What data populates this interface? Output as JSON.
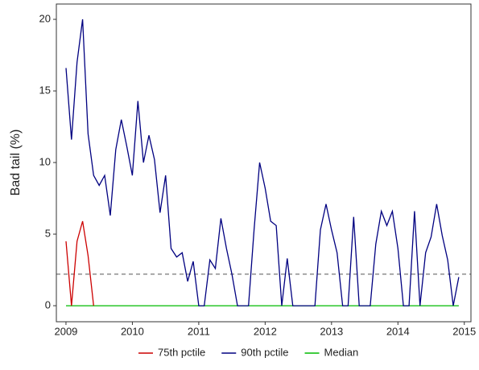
{
  "chart_data": {
    "type": "line",
    "y_label": "Bad tail (%)",
    "x": [
      2009,
      2009.083,
      2009.167,
      2009.25,
      2009.333,
      2009.417,
      2009.5,
      2009.583,
      2009.667,
      2009.75,
      2009.833,
      2009.917,
      2010,
      2010.083,
      2010.167,
      2010.25,
      2010.333,
      2010.417,
      2010.5,
      2010.583,
      2010.667,
      2010.75,
      2010.833,
      2010.917,
      2011,
      2011.083,
      2011.167,
      2011.25,
      2011.333,
      2011.417,
      2011.5,
      2011.583,
      2011.667,
      2011.75,
      2011.833,
      2011.917,
      2012,
      2012.083,
      2012.167,
      2012.25,
      2012.333,
      2012.417,
      2012.5,
      2012.583,
      2012.667,
      2012.75,
      2012.833,
      2012.917,
      2013,
      2013.083,
      2013.167,
      2013.25,
      2013.333,
      2013.417,
      2013.5,
      2013.583,
      2013.667,
      2013.75,
      2013.833,
      2013.917,
      2014,
      2014.083,
      2014.167,
      2014.25,
      2014.333,
      2014.417,
      2014.5,
      2014.583,
      2014.667,
      2014.75,
      2014.833,
      2014.917
    ],
    "series": [
      {
        "name": "75th pctile",
        "color": "#cc0000",
        "values": [
          4.5,
          0,
          4.5,
          5.9,
          3.5,
          0,
          null,
          null,
          null,
          null,
          null,
          null,
          null,
          null,
          null,
          null,
          null,
          null,
          null,
          null,
          null,
          null,
          null,
          null,
          null,
          null,
          null,
          null,
          null,
          null,
          null,
          null,
          null,
          null,
          null,
          null,
          null,
          null,
          null,
          null,
          null,
          null,
          null,
          null,
          null,
          null,
          null,
          null,
          null,
          null,
          null,
          null,
          null,
          null,
          null,
          null,
          null,
          null,
          null,
          null,
          null,
          null,
          null,
          null,
          null,
          null,
          null,
          null,
          null,
          null,
          null,
          null
        ]
      },
      {
        "name": "90th pctile",
        "color": "#000080",
        "values": [
          16.6,
          11.6,
          17,
          20,
          12,
          9.1,
          8.4,
          9.1,
          6.3,
          10.9,
          13,
          11.1,
          9.1,
          14.3,
          10,
          11.9,
          10.2,
          6.5,
          9.1,
          4,
          3.4,
          3.7,
          1.7,
          3.1,
          0,
          0,
          3.2,
          2.6,
          6.1,
          4,
          2.2,
          0,
          0,
          0,
          5.3,
          10,
          8.2,
          5.9,
          5.6,
          0,
          3.3,
          0,
          0,
          0,
          0,
          0,
          5.3,
          7.1,
          5.3,
          3.7,
          0,
          0,
          6.2,
          0,
          0,
          0,
          4.3,
          6.6,
          5.6,
          6.6,
          4,
          0,
          0,
          6.6,
          0,
          3.7,
          4.8,
          7.1,
          4.9,
          3.2,
          0,
          2
        ]
      },
      {
        "name": "Median",
        "color": "#00bb00",
        "values": [
          0,
          0,
          0,
          0,
          0,
          0,
          0,
          0,
          0,
          0,
          0,
          0,
          0,
          0,
          0,
          0,
          0,
          0,
          0,
          0,
          0,
          0,
          0,
          0,
          0,
          0,
          0,
          0,
          0,
          0,
          0,
          0,
          0,
          0,
          0,
          0,
          0,
          0,
          0,
          0,
          0,
          0,
          0,
          0,
          0,
          0,
          0,
          0,
          0,
          0,
          0,
          0,
          0,
          0,
          0,
          0,
          0,
          0,
          0,
          0,
          0,
          0,
          0,
          0,
          0,
          0,
          0,
          0,
          0,
          0,
          0,
          0
        ]
      }
    ],
    "hline": 2.2,
    "xlim": [
      2008.855,
      2015.1
    ],
    "xticks": [
      2009,
      2010,
      2011,
      2012,
      2013,
      2014,
      2015
    ],
    "ylim": [
      -1.12,
      21.07
    ],
    "yticks": [
      0,
      5,
      10,
      15,
      20
    ],
    "legend": "bottom"
  }
}
